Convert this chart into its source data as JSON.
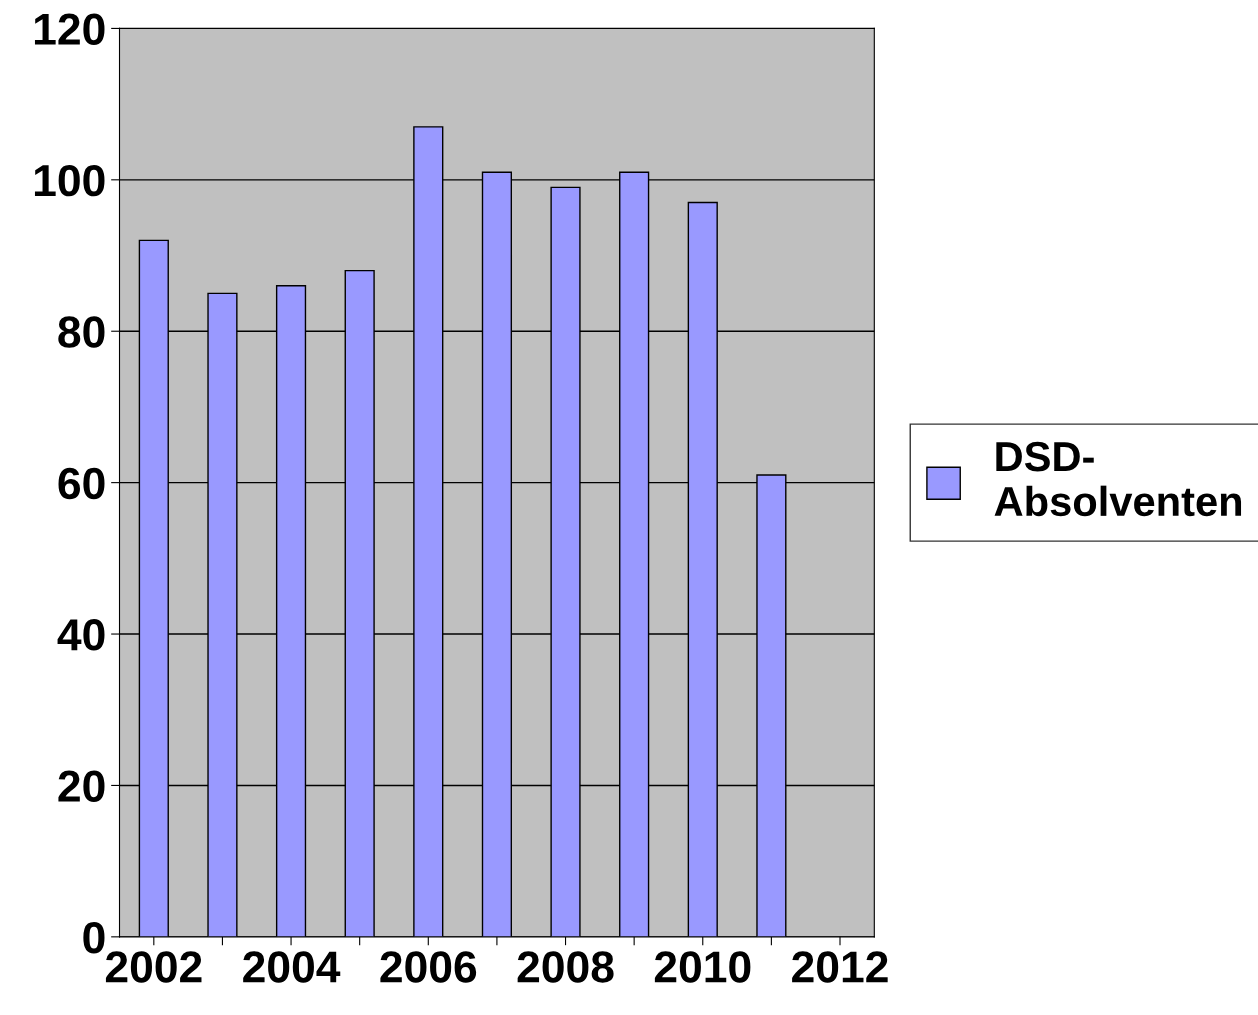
{
  "chart_data": {
    "type": "bar",
    "categories": [
      "2002",
      null,
      "2004",
      null,
      "2006",
      null,
      "2008",
      null,
      "2010",
      null,
      "2012"
    ],
    "series": [
      {
        "name": "DSD-\nAbsolventen",
        "color": "#9999ff",
        "values": [
          92,
          85,
          86,
          88,
          107,
          101,
          99,
          101,
          97,
          61,
          null
        ]
      }
    ],
    "ylim": [
      0,
      120
    ],
    "yticks": [
      0,
      20,
      40,
      60,
      80,
      100,
      120
    ],
    "grid": "y",
    "legend": "right"
  }
}
